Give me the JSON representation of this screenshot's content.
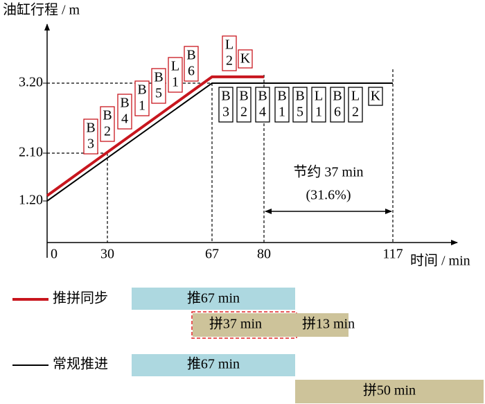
{
  "chart_data": {
    "type": "line",
    "y_label": "油缸行程 / m",
    "x_label": "时间 / min",
    "xticks": [
      0,
      30,
      67,
      80,
      117
    ],
    "yticks": [
      {
        "value": 1.2,
        "label": "1.20"
      },
      {
        "value": 2.1,
        "label": "2.10"
      },
      {
        "value": 3.2,
        "label": "3.20"
      }
    ],
    "series": [
      {
        "name": "推拼同步",
        "color": "#c8161e",
        "x": [
          0,
          67,
          80
        ],
        "values": [
          1.3,
          3.3,
          3.3
        ],
        "box_labels": [
          [
            "B",
            "3"
          ],
          [
            "B",
            "2"
          ],
          [
            "B",
            "4"
          ],
          [
            "B",
            "1"
          ],
          [
            "B",
            "5"
          ],
          [
            "L",
            "1"
          ],
          [
            "B",
            "6"
          ],
          [
            "L",
            "2"
          ],
          [
            "K"
          ]
        ]
      },
      {
        "name": "常规推进",
        "color": "#000000",
        "x": [
          0,
          67,
          117
        ],
        "values": [
          1.2,
          3.2,
          3.2
        ],
        "box_labels": [
          [
            "B",
            "3"
          ],
          [
            "B",
            "2"
          ],
          [
            "B",
            "4"
          ],
          [
            "B",
            "1"
          ],
          [
            "B",
            "5"
          ],
          [
            "L",
            "1"
          ],
          [
            "B",
            "6"
          ],
          [
            "L",
            "2"
          ],
          [
            "K"
          ]
        ]
      }
    ],
    "annotation": [
      "节约 37 min",
      "(31.6%)"
    ]
  },
  "timeline": {
    "rows": [
      {
        "bars": [
          "推67 min",
          "拼37 min",
          "拼13 min"
        ]
      },
      {
        "bars": [
          "推67 min",
          "拼50 min"
        ]
      }
    ]
  }
}
